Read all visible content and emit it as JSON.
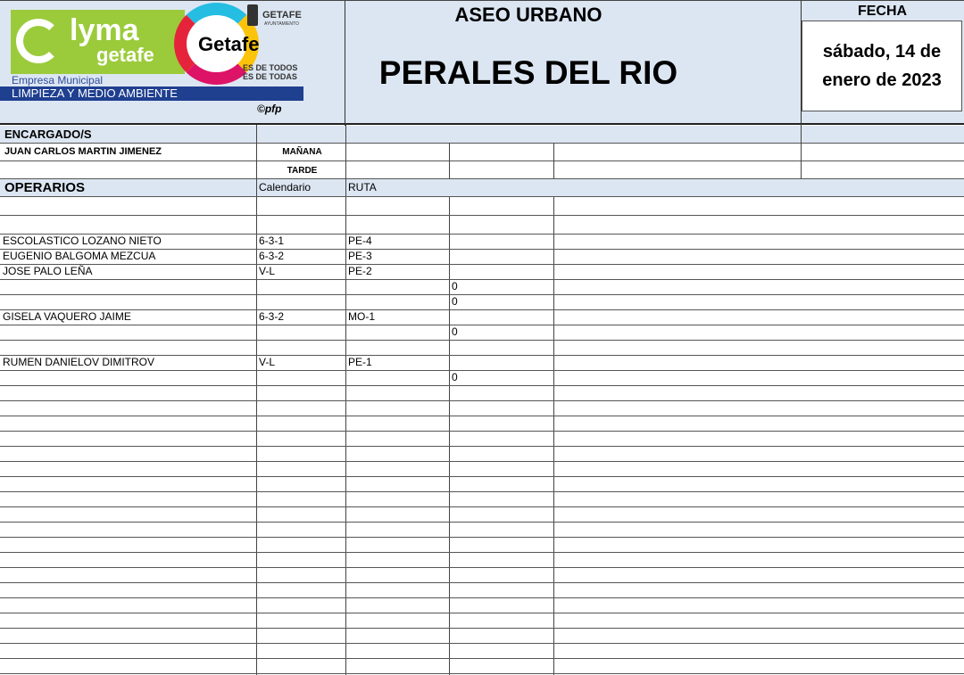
{
  "logo": {
    "brand": "Lyma",
    "brand_sub": "getafe",
    "empresa": "Empresa Municipal",
    "division": "LIMPIEZA Y MEDIO AMBIENTE",
    "copyright": "©pfp",
    "getafe_logo": "Getafe",
    "ayto": "GETAFE",
    "ayto_sub": "AYUNTAMIENTO",
    "slogan1": "ES DE TODOS",
    "slogan2": "ES DE TODAS"
  },
  "header": {
    "title": "ASEO URBANO",
    "location": "PERALES DEL RIO",
    "fecha_label": "FECHA",
    "fecha_value": "sábado, 14 de enero de 2023"
  },
  "encargados": {
    "label": "ENCARGADO/S",
    "name": "JUAN CARLOS MARTIN JIMENEZ",
    "manana": "MAÑANA",
    "tarde": "TARDE"
  },
  "operarios": {
    "label": "OPERARIOS",
    "col_calendario": "Calendario",
    "col_ruta": "RUTA",
    "rows": [
      {
        "name": "",
        "cal": "",
        "ruta": "",
        "extra": ""
      },
      {
        "name": "",
        "cal": "",
        "ruta": "",
        "extra": ""
      },
      {
        "name": "ESCOLASTICO LOZANO NIETO",
        "cal": "6-3-1",
        "ruta": "PE-4",
        "extra": ""
      },
      {
        "name": "EUGENIO BALGOMA MEZCUA",
        "cal": "6-3-2",
        "ruta": "PE-3",
        "extra": ""
      },
      {
        "name": "JOSE PALO LEÑA",
        "cal": "V-L",
        "ruta": "PE-2",
        "extra": ""
      },
      {
        "name": "",
        "cal": "",
        "ruta": "",
        "extra": "0"
      },
      {
        "name": "",
        "cal": "",
        "ruta": "",
        "extra": "0"
      },
      {
        "name": "GISELA VAQUERO JAIME",
        "cal": "6-3-2",
        "ruta": "MO-1",
        "extra": ""
      },
      {
        "name": "",
        "cal": "",
        "ruta": "",
        "extra": "0"
      },
      {
        "name": "",
        "cal": "",
        "ruta": "",
        "extra": ""
      },
      {
        "name": "RUMEN DANIELOV DIMITROV",
        "cal": "V-L",
        "ruta": "PE-1",
        "extra": ""
      },
      {
        "name": "",
        "cal": "",
        "ruta": "",
        "extra": "0"
      }
    ]
  }
}
